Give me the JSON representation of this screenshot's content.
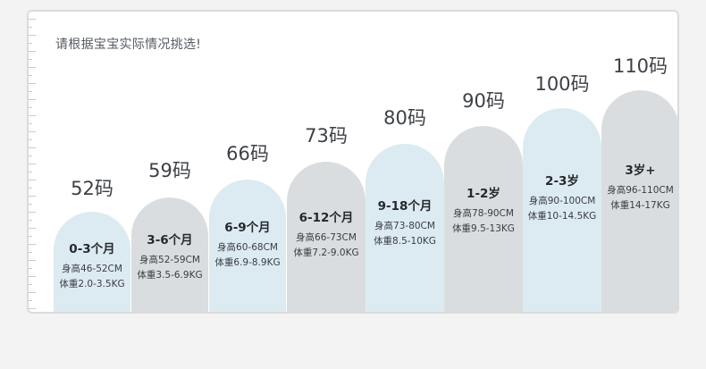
{
  "heading": "请根据宝宝实际情况挑选!",
  "colors": {
    "column_blue": "#dcebf1",
    "column_gray": "#dadddf",
    "card_border": "#dadbdd",
    "text_dark": "#3d4046"
  },
  "sizes": [
    {
      "size": "52码",
      "age": "0-3个月",
      "height": "身高46-52CM",
      "weight": "体重2.0-3.5KG"
    },
    {
      "size": "59码",
      "age": "3-6个月",
      "height": "身高52-59CM",
      "weight": "体重3.5-6.9KG"
    },
    {
      "size": "66码",
      "age": "6-9个月",
      "height": "身高60-68CM",
      "weight": "体重6.9-8.9KG"
    },
    {
      "size": "73码",
      "age": "6-12个月",
      "height": "身高66-73CM",
      "weight": "体重7.2-9.0KG"
    },
    {
      "size": "80码",
      "age": "9-18个月",
      "height": "身高73-80CM",
      "weight": "体重8.5-10KG"
    },
    {
      "size": "90码",
      "age": "1-2岁",
      "height": "身高78-90CM",
      "weight": "体重9.5-13KG"
    },
    {
      "size": "100码",
      "age": "2-3岁",
      "height": "身高90-100CM",
      "weight": "体重10-14.5KG"
    },
    {
      "size": "110码",
      "age": "3岁+",
      "height": "身高96-110CM",
      "weight": "体重14-17KG"
    }
  ]
}
